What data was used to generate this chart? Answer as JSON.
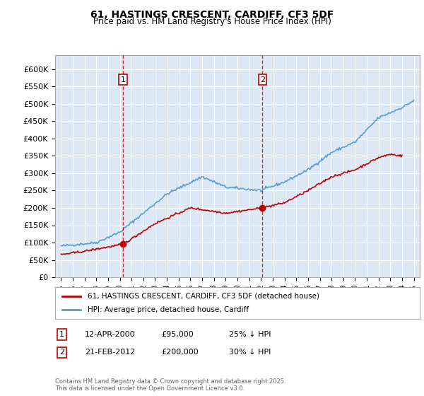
{
  "title_line1": "61, HASTINGS CRESCENT, CARDIFF, CF3 5DF",
  "title_line2": "Price paid vs. HM Land Registry's House Price Index (HPI)",
  "ylabel": "",
  "background_color": "#ffffff",
  "plot_bg_color": "#dce9f5",
  "grid_color": "#ffffff",
  "hpi_color": "#5b9bd5",
  "price_color": "#c00000",
  "marker1_date_x": 2000.28,
  "marker2_date_x": 2012.12,
  "marker1_price": 95000,
  "marker2_price": 200000,
  "marker1_label": "1",
  "marker2_label": "2",
  "annotation1": "12-APR-2000    £95,000    25% ↓ HPI",
  "annotation2": "21-FEB-2012    £200,000    30% ↓ HPI",
  "legend_line1": "61, HASTINGS CRESCENT, CARDIFF, CF3 5DF (detached house)",
  "legend_line2": "HPI: Average price, detached house, Cardiff",
  "footer": "Contains HM Land Registry data © Crown copyright and database right 2025.\nThis data is licensed under the Open Government Licence v3.0.",
  "xlim": [
    1994.5,
    2025.5
  ],
  "ylim": [
    0,
    640000
  ],
  "yticks": [
    0,
    50000,
    100000,
    150000,
    200000,
    250000,
    300000,
    350000,
    400000,
    450000,
    500000,
    550000,
    600000
  ],
  "xticks": [
    1995,
    1996,
    1997,
    1998,
    1999,
    2000,
    2001,
    2002,
    2003,
    2004,
    2005,
    2006,
    2007,
    2008,
    2009,
    2010,
    2011,
    2012,
    2013,
    2014,
    2015,
    2016,
    2017,
    2018,
    2019,
    2020,
    2021,
    2022,
    2023,
    2024,
    2025
  ]
}
